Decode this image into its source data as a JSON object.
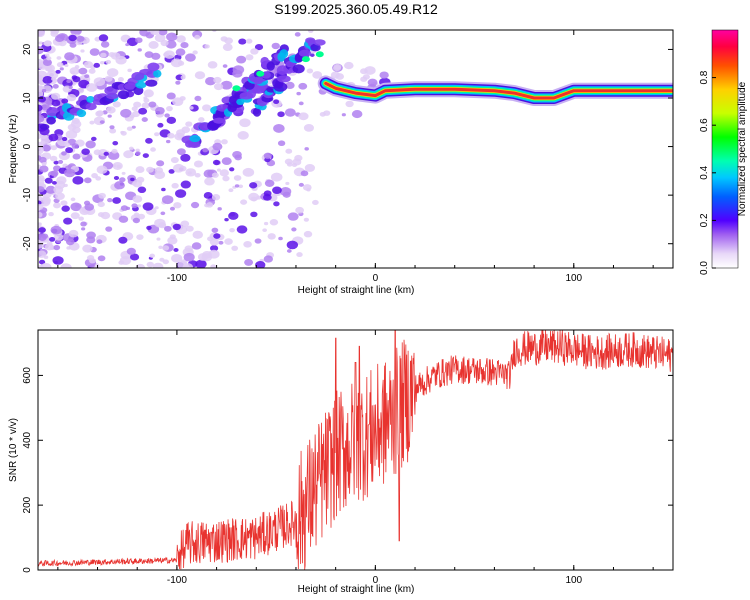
{
  "figure_title": "S199.2025.360.05.49.R12",
  "chart_data": [
    {
      "type": "heatmap",
      "name": "spectrogram",
      "xlabel": "Height of straight line (km)",
      "ylabel": "Frequency (Hz)",
      "xlim": [
        -170,
        150
      ],
      "ylim": [
        -25,
        24
      ],
      "xticks": [
        -100,
        0,
        100
      ],
      "yticks": [
        -20,
        -10,
        0,
        10,
        20
      ],
      "colorbar": {
        "label": "Normalized spectral amplitude",
        "range": [
          0,
          1
        ],
        "ticks": [
          0.0,
          0.2,
          0.4,
          0.6,
          0.8
        ]
      },
      "ridge": {
        "description": "dominant frequency vs height",
        "points": [
          [
            -25,
            13
          ],
          [
            -20,
            12
          ],
          [
            -10,
            11
          ],
          [
            0,
            10.5
          ],
          [
            5,
            11.5
          ],
          [
            20,
            11.8
          ],
          [
            40,
            11.8
          ],
          [
            60,
            11.5
          ],
          [
            70,
            11
          ],
          [
            80,
            10
          ],
          [
            90,
            10
          ],
          [
            100,
            11.5
          ],
          [
            120,
            11.5
          ],
          [
            150,
            11.5
          ]
        ]
      },
      "streaks": [
        {
          "from": [
            -95,
            0
          ],
          "to": [
            -55,
            15
          ]
        },
        {
          "from": [
            -80,
            5
          ],
          "to": [
            -45,
            20
          ]
        },
        {
          "from": [
            -60,
            8
          ],
          "to": [
            -30,
            22
          ]
        },
        {
          "from": [
            -165,
            5
          ],
          "to": [
            -110,
            15
          ]
        }
      ],
      "noise_region": {
        "x": [
          -170,
          -100
        ],
        "y": [
          -25,
          24
        ]
      }
    },
    {
      "type": "line",
      "name": "snr",
      "xlabel": "Height of straight line (km)",
      "ylabel": "SNR (10 * v/v)",
      "xlim": [
        -170,
        150
      ],
      "ylim": [
        0,
        740
      ],
      "xticks": [
        -100,
        0,
        100
      ],
      "yticks": [
        0,
        200,
        400,
        600
      ],
      "color": "#e8332f",
      "trend": [
        [
          -170,
          20
        ],
        [
          -100,
          30
        ],
        [
          -95,
          80
        ],
        [
          -80,
          90
        ],
        [
          -60,
          100
        ],
        [
          -40,
          150
        ],
        [
          -30,
          250
        ],
        [
          -20,
          350
        ],
        [
          -10,
          400
        ],
        [
          0,
          430
        ],
        [
          10,
          480
        ],
        [
          20,
          560
        ],
        [
          30,
          600
        ],
        [
          40,
          620
        ],
        [
          60,
          610
        ],
        [
          68,
          600
        ],
        [
          70,
          680
        ],
        [
          90,
          690
        ],
        [
          110,
          670
        ],
        [
          130,
          680
        ],
        [
          150,
          660
        ]
      ],
      "spikes": [
        [
          -20,
          715
        ],
        [
          -10,
          640
        ],
        [
          -8,
          690
        ],
        [
          10,
          740
        ],
        [
          12,
          90
        ]
      ]
    }
  ]
}
